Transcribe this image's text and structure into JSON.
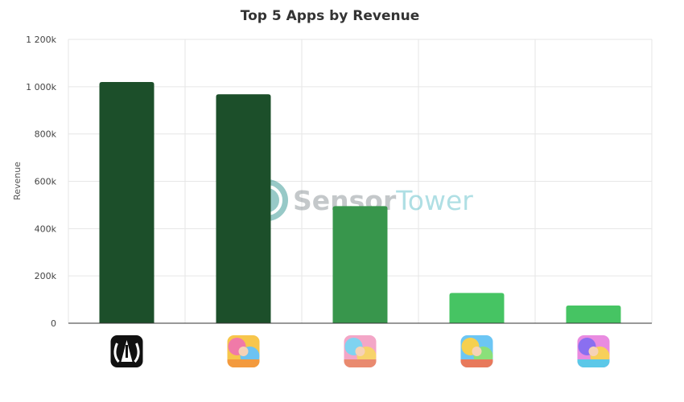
{
  "chart_data": {
    "type": "bar",
    "title": "Top 5 Apps by Revenue",
    "ylabel": "Revenue",
    "xlabel": "",
    "ylim": [
      0,
      1200000
    ],
    "yticks": [
      0,
      200000,
      400000,
      600000,
      800000,
      1000000,
      1200000
    ],
    "ytick_labels": [
      "0",
      "200k",
      "400k",
      "600k",
      "800k",
      "1 000k",
      "1 200k"
    ],
    "categories": [
      "guitar-app-icon",
      "cartoon-game-icon-1",
      "cartoon-game-icon-2",
      "cartoon-game-icon-3",
      "cartoon-game-icon-4"
    ],
    "values": [
      1020000,
      968000,
      495000,
      128000,
      75000
    ],
    "bar_colors": [
      "#1c4f2a",
      "#1c4f2a",
      "#38964c",
      "#46c463",
      "#46c463"
    ],
    "grid": true,
    "legend": "none"
  },
  "watermark": {
    "word1": "Sensor",
    "word2": "Tower"
  },
  "colors": {
    "axis": "#333333",
    "grid": "#e6e6e6",
    "watermark_dark": "#9aa2a8",
    "watermark_light": "#7ccfd6"
  }
}
